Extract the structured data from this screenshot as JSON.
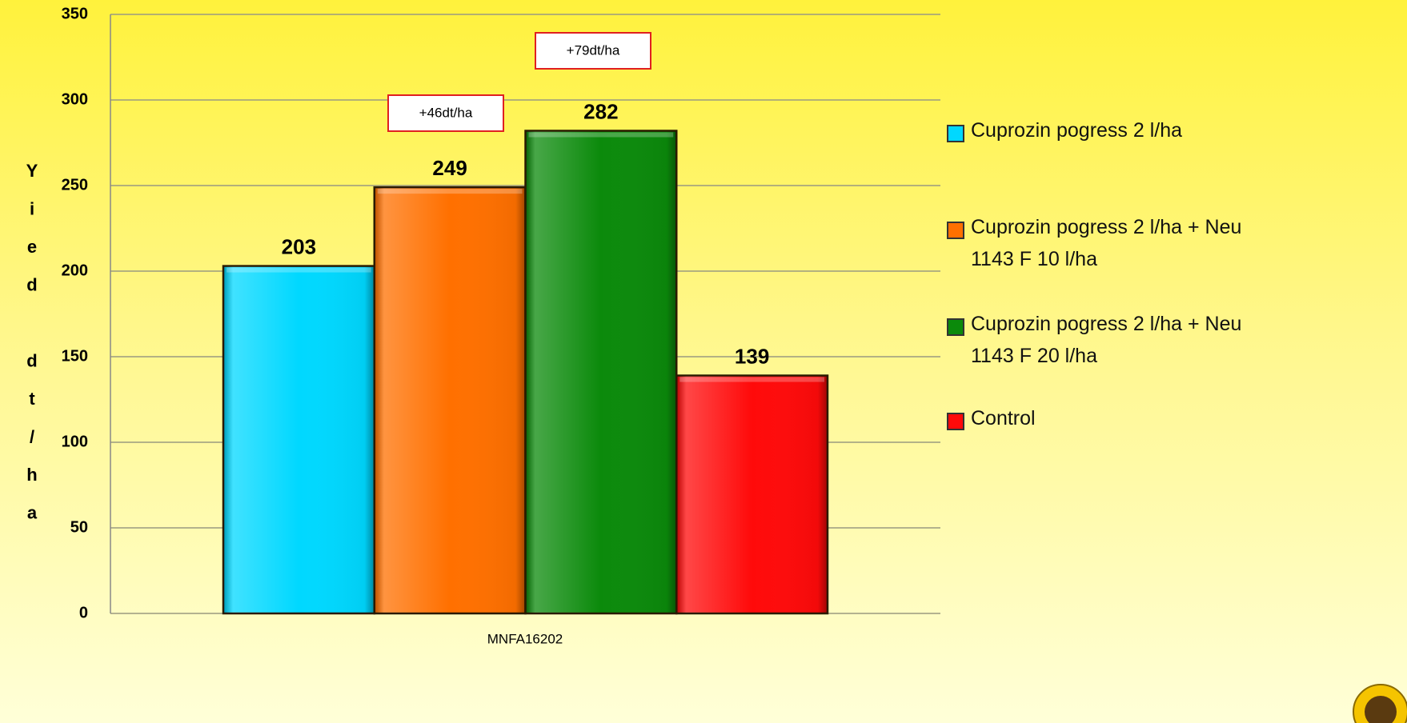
{
  "chart_data": {
    "type": "bar",
    "y_label": "Yied dt/ha",
    "categories": [
      "MNFA16202"
    ],
    "series": [
      {
        "name": "Cuprozin pogress 2 l/ha",
        "color": "#00d8ff",
        "values": [
          203
        ]
      },
      {
        "name": "Cuprozin pogress 2 l/ha + Neu 1143 F 10 l/ha",
        "color": "#ff7000",
        "values": [
          249
        ]
      },
      {
        "name": "Cuprozin pogress 2 l/ha + Neu 1143 F 20 l/ha",
        "color": "#0b8a0b",
        "values": [
          282
        ]
      },
      {
        "name": "Control",
        "color": "#ff0a0a",
        "values": [
          139
        ]
      }
    ],
    "annotations": [
      "+46dt/ha",
      "+79dt/ha"
    ],
    "ylim": [
      0,
      350
    ],
    "yticks": [
      0,
      50,
      100,
      150,
      200,
      250,
      300,
      350
    ],
    "grid": true,
    "legend": "right"
  }
}
